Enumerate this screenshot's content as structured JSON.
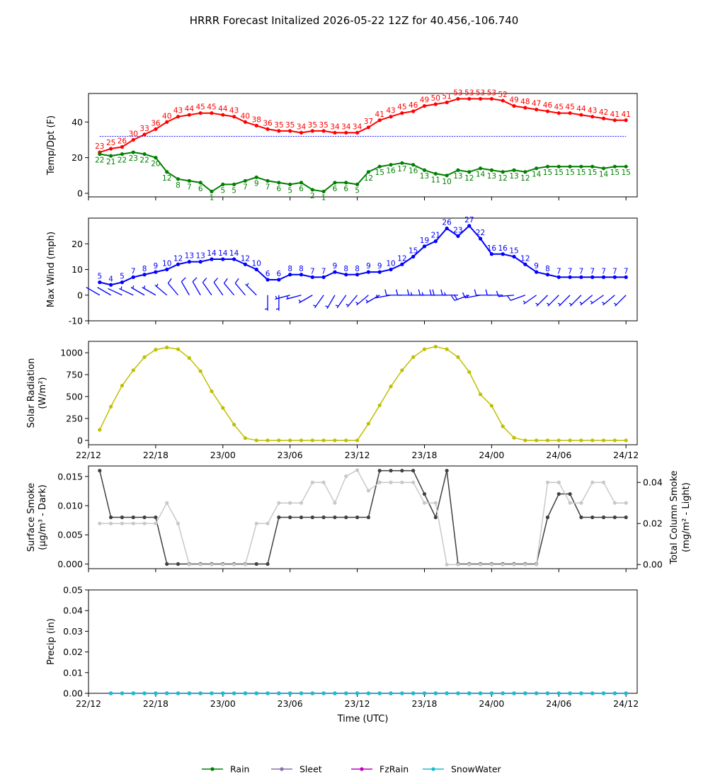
{
  "figure": {
    "title": "HRRR Forecast Initalized 2026-05-22 12Z for 40.456,-106.740"
  },
  "chart_data": [
    {
      "type": "line",
      "panel": "temp-dewpoint",
      "ylabel": "Temp/Dpt (F)",
      "ylim": [
        -2,
        56
      ],
      "yticks": [
        0,
        20,
        40
      ],
      "xticks": [
        "22/12",
        "22/18",
        "23/00",
        "23/06",
        "23/12",
        "23/18",
        "24/00",
        "24/06",
        "24/12"
      ],
      "x_hours": [
        1,
        2,
        3,
        4,
        5,
        6,
        7,
        8,
        9,
        10,
        11,
        12,
        13,
        14,
        15,
        16,
        17,
        18,
        19,
        20,
        21,
        22,
        23,
        24,
        25,
        26,
        27,
        28,
        29,
        30,
        31,
        32,
        33,
        34,
        35,
        36,
        37,
        38,
        39,
        40,
        41,
        42,
        43,
        44,
        45,
        46,
        47,
        48
      ],
      "reference_line": 32,
      "series": [
        {
          "key": "temperature",
          "color": "#ff0000",
          "values": [
            23,
            25,
            26,
            30,
            33,
            36,
            40,
            43,
            44,
            45,
            45,
            44,
            43,
            40,
            38,
            36,
            35,
            35,
            34,
            35,
            35,
            34,
            34,
            34,
            37,
            41,
            43,
            45,
            46,
            49,
            50,
            51,
            53,
            53,
            53,
            53,
            52,
            49,
            48,
            47,
            46,
            45,
            45,
            44,
            43,
            42,
            41,
            41
          ]
        },
        {
          "key": "dewpoint",
          "color": "#008000",
          "values": [
            22,
            21,
            22,
            23,
            22,
            20,
            12,
            8,
            7,
            6,
            1,
            5,
            5,
            7,
            9,
            7,
            6,
            5,
            6,
            2,
            1,
            6,
            6,
            5,
            12,
            15,
            16,
            17,
            16,
            13,
            11,
            10,
            13,
            12,
            14,
            13,
            12,
            13,
            12,
            14,
            15,
            15,
            15,
            15,
            15,
            14,
            15,
            15
          ]
        }
      ]
    },
    {
      "type": "line",
      "panel": "max-wind",
      "ylabel": "Max Wind (mph)",
      "ylim": [
        -10,
        30
      ],
      "yticks": [
        -10,
        0,
        10,
        20
      ],
      "xticks": [
        "22/12",
        "22/18",
        "23/00",
        "23/06",
        "23/12",
        "23/18",
        "24/00",
        "24/06",
        "24/12"
      ],
      "x_hours": [
        1,
        2,
        3,
        4,
        5,
        6,
        7,
        8,
        9,
        10,
        11,
        12,
        13,
        14,
        15,
        16,
        17,
        18,
        19,
        20,
        21,
        22,
        23,
        24,
        25,
        26,
        27,
        28,
        29,
        30,
        31,
        32,
        33,
        34,
        35,
        36,
        37,
        38,
        39,
        40,
        41,
        42,
        43,
        44,
        45,
        46,
        47,
        48
      ],
      "series": [
        {
          "key": "max-wind",
          "color": "#0000ff",
          "values": [
            5,
            4,
            5,
            7,
            8,
            9,
            10,
            12,
            13,
            13,
            14,
            14,
            14,
            12,
            10,
            6,
            6,
            8,
            8,
            7,
            7,
            9,
            8,
            8,
            9,
            9,
            10,
            12,
            15,
            19,
            21,
            26,
            23,
            27,
            22,
            16,
            16,
            15,
            12,
            9,
            8,
            7,
            7,
            7,
            7,
            7,
            7,
            7
          ]
        }
      ],
      "wind_barbs_from_deg": [
        300,
        300,
        295,
        295,
        300,
        300,
        310,
        320,
        330,
        330,
        325,
        325,
        320,
        320,
        315,
        180,
        180,
        255,
        255,
        240,
        215,
        210,
        215,
        220,
        230,
        240,
        260,
        270,
        270,
        270,
        270,
        270,
        270,
        250,
        260,
        270,
        270,
        265,
        250,
        235,
        225,
        225,
        225,
        225,
        230,
        235,
        230,
        225
      ],
      "wind_barbs_speed_mph": [
        5,
        4,
        5,
        7,
        8,
        9,
        10,
        12,
        13,
        13,
        14,
        14,
        14,
        12,
        10,
        6,
        6,
        8,
        8,
        7,
        7,
        9,
        8,
        8,
        9,
        9,
        10,
        12,
        15,
        19,
        21,
        26,
        23,
        27,
        22,
        16,
        16,
        15,
        12,
        9,
        8,
        7,
        7,
        7,
        7,
        7,
        7,
        7
      ]
    },
    {
      "type": "line",
      "panel": "solar-radiation",
      "ylabel_line1": "Solar Radiation",
      "ylabel_line2": "(W/m²)",
      "ylim": [
        -50,
        1130
      ],
      "yticks": [
        0,
        250,
        500,
        750,
        1000
      ],
      "xticks": [
        "22/12",
        "22/18",
        "23/00",
        "23/06",
        "23/12",
        "23/18",
        "24/00",
        "24/06",
        "24/12"
      ],
      "x_hours": [
        1,
        2,
        3,
        4,
        5,
        6,
        7,
        8,
        9,
        10,
        11,
        12,
        13,
        14,
        15,
        16,
        17,
        18,
        19,
        20,
        21,
        22,
        23,
        24,
        25,
        26,
        27,
        28,
        29,
        30,
        31,
        32,
        33,
        34,
        35,
        36,
        37,
        38,
        39,
        40,
        41,
        42,
        43,
        44,
        45,
        46,
        47,
        48
      ],
      "series": [
        {
          "key": "solar",
          "color": "#bfbf00",
          "values": [
            120,
            385,
            625,
            800,
            950,
            1035,
            1060,
            1040,
            940,
            790,
            560,
            370,
            180,
            25,
            0,
            0,
            0,
            0,
            0,
            0,
            0,
            0,
            0,
            0,
            190,
            400,
            615,
            800,
            950,
            1040,
            1070,
            1040,
            950,
            780,
            525,
            395,
            160,
            30,
            0,
            0,
            0,
            0,
            0,
            0,
            0,
            0,
            0,
            0
          ]
        }
      ]
    },
    {
      "type": "line",
      "panel": "smoke",
      "ylabel_line1": "Surface Smoke",
      "ylabel_line2": "(µg/m³ - Dark)",
      "ylabel2_line1": "Total Column Smoke",
      "ylabel2_line2": "(mg/m² - Light)",
      "ylim": [
        -0.0008,
        0.0168
      ],
      "yticks": [
        "0.000",
        "0.005",
        "0.010",
        "0.015"
      ],
      "y2lim": [
        -0.002,
        0.048
      ],
      "y2ticks": [
        "0.00",
        "0.02",
        "0.04"
      ],
      "xticks": [
        "22/12",
        "22/18",
        "23/00",
        "23/06",
        "23/12",
        "23/18",
        "24/00",
        "24/06",
        "24/12"
      ],
      "x_hours": [
        1,
        2,
        3,
        4,
        5,
        6,
        7,
        8,
        9,
        10,
        11,
        12,
        13,
        14,
        15,
        16,
        17,
        18,
        19,
        20,
        21,
        22,
        23,
        24,
        25,
        26,
        27,
        28,
        29,
        30,
        31,
        32,
        33,
        34,
        35,
        36,
        37,
        38,
        39,
        40,
        41,
        42,
        43,
        44,
        45,
        46,
        47,
        48
      ],
      "series": [
        {
          "key": "surface-smoke",
          "axis": "left",
          "color": "#404040",
          "values": [
            0.016,
            0.008,
            0.008,
            0.008,
            0.008,
            0.008,
            0.0,
            0.0,
            0.0,
            0.0,
            0.0,
            0.0,
            0.0,
            0.0,
            0.0,
            0.0,
            0.008,
            0.008,
            0.008,
            0.008,
            0.008,
            0.008,
            0.008,
            0.008,
            0.008,
            0.016,
            0.016,
            0.016,
            0.016,
            0.012,
            0.008,
            0.016,
            0.0,
            0.0,
            0.0,
            0.0,
            0.0,
            0.0,
            0.0,
            0.0,
            0.008,
            0.012,
            0.012,
            0.008,
            0.008,
            0.008,
            0.008,
            0.008
          ]
        },
        {
          "key": "column-smoke",
          "axis": "right",
          "color": "#c8c8c8",
          "values": [
            0.02,
            0.02,
            0.02,
            0.02,
            0.02,
            0.02,
            0.03,
            0.02,
            0.0,
            0.0,
            0.0,
            0.0,
            0.0,
            0.0,
            0.02,
            0.02,
            0.03,
            0.03,
            0.03,
            0.04,
            0.04,
            0.03,
            0.043,
            0.046,
            0.036,
            0.04,
            0.04,
            0.04,
            0.04,
            0.03,
            0.03,
            0.0,
            0.0,
            0.0,
            0.0,
            0.0,
            0.0,
            0.0,
            0.0,
            0.0,
            0.04,
            0.04,
            0.03,
            0.03,
            0.04,
            0.04,
            0.03,
            0.03
          ]
        }
      ]
    },
    {
      "type": "line",
      "panel": "precip",
      "ylabel": "Precip (in)",
      "xlabel": "Time (UTC)",
      "ylim": [
        0,
        0.05
      ],
      "yticks": [
        "0.00",
        "0.01",
        "0.02",
        "0.03",
        "0.04",
        "0.05"
      ],
      "xticks": [
        "22/12",
        "22/18",
        "23/00",
        "23/06",
        "23/12",
        "23/18",
        "24/00",
        "24/06",
        "24/12"
      ],
      "x_hours": [
        2,
        3,
        4,
        5,
        6,
        7,
        8,
        9,
        10,
        11,
        12,
        13,
        14,
        15,
        16,
        17,
        18,
        19,
        20,
        21,
        22,
        23,
        24,
        25,
        26,
        27,
        28,
        29,
        30,
        31,
        32,
        33,
        34,
        35,
        36,
        37,
        38,
        39,
        40,
        41,
        42,
        43,
        44,
        45,
        46,
        47,
        48
      ],
      "series": [
        {
          "key": "rain",
          "name": "Rain",
          "color": "#008000",
          "values": [
            0,
            0,
            0,
            0,
            0,
            0,
            0,
            0,
            0,
            0,
            0,
            0,
            0,
            0,
            0,
            0,
            0,
            0,
            0,
            0,
            0,
            0,
            0,
            0,
            0,
            0,
            0,
            0,
            0,
            0,
            0,
            0,
            0,
            0,
            0,
            0,
            0,
            0,
            0,
            0,
            0,
            0,
            0,
            0,
            0,
            0,
            0
          ]
        },
        {
          "key": "sleet",
          "name": "Sleet",
          "color": "#8c6fa8",
          "values": [
            0,
            0,
            0,
            0,
            0,
            0,
            0,
            0,
            0,
            0,
            0,
            0,
            0,
            0,
            0,
            0,
            0,
            0,
            0,
            0,
            0,
            0,
            0,
            0,
            0,
            0,
            0,
            0,
            0,
            0,
            0,
            0,
            0,
            0,
            0,
            0,
            0,
            0,
            0,
            0,
            0,
            0,
            0,
            0,
            0,
            0,
            0
          ]
        },
        {
          "key": "fzrain",
          "name": "FzRain",
          "color": "#c000c0",
          "values": [
            0,
            0,
            0,
            0,
            0,
            0,
            0,
            0,
            0,
            0,
            0,
            0,
            0,
            0,
            0,
            0,
            0,
            0,
            0,
            0,
            0,
            0,
            0,
            0,
            0,
            0,
            0,
            0,
            0,
            0,
            0,
            0,
            0,
            0,
            0,
            0,
            0,
            0,
            0,
            0,
            0,
            0,
            0,
            0,
            0,
            0,
            0
          ]
        },
        {
          "key": "snowwater",
          "name": "SnowWater",
          "color": "#17becf",
          "values": [
            0,
            0,
            0,
            0,
            0,
            0,
            0,
            0,
            0,
            0,
            0,
            0,
            0,
            0,
            0,
            0,
            0,
            0,
            0,
            0,
            0,
            0,
            0,
            0,
            0,
            0,
            0,
            0,
            0,
            0,
            0,
            0,
            0,
            0,
            0,
            0,
            0,
            0,
            0,
            0,
            0,
            0,
            0,
            0,
            0,
            0,
            0
          ]
        }
      ],
      "legend_position": "bottom-center"
    }
  ]
}
